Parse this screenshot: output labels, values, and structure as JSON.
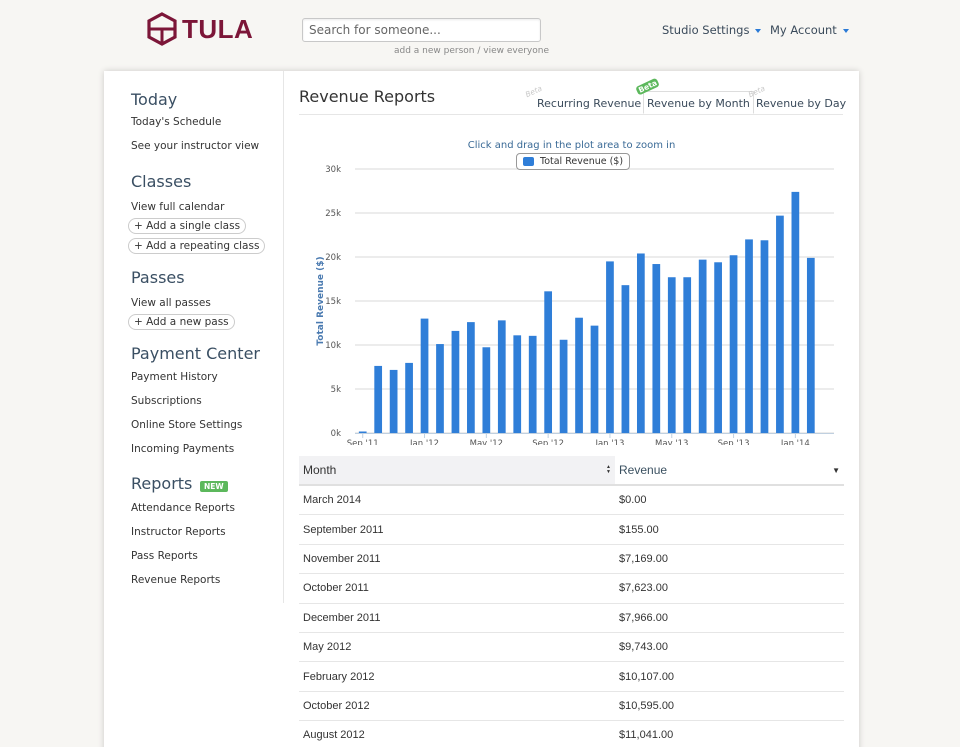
{
  "header": {
    "brand": "TULA",
    "search_placeholder": "Search for someone...",
    "search_subtext": "add a new person / view everyone",
    "menus": [
      {
        "label": "Studio Settings"
      },
      {
        "label": "My Account"
      }
    ]
  },
  "sidebar": {
    "sections": [
      {
        "heading": "Today",
        "items": [
          {
            "label": "Today's Schedule",
            "type": "link"
          },
          {
            "label": "See your instructor view",
            "type": "link"
          }
        ]
      },
      {
        "heading": "Classes",
        "items": [
          {
            "label": "View full calendar",
            "type": "link"
          },
          {
            "label": "+ Add a single class",
            "type": "pill"
          },
          {
            "label": "+ Add a repeating class",
            "type": "pill"
          }
        ]
      },
      {
        "heading": "Passes",
        "items": [
          {
            "label": "View all passes",
            "type": "link"
          },
          {
            "label": "+ Add a new pass",
            "type": "pill"
          }
        ]
      },
      {
        "heading": "Payment Center",
        "items": [
          {
            "label": "Payment History",
            "type": "link"
          },
          {
            "label": "Subscriptions",
            "type": "link"
          },
          {
            "label": "Online Store Settings",
            "type": "link"
          },
          {
            "label": "Incoming Payments",
            "type": "link"
          }
        ]
      },
      {
        "heading": "Reports",
        "badge": "NEW",
        "items": [
          {
            "label": "Attendance Reports",
            "type": "link"
          },
          {
            "label": "Instructor Reports",
            "type": "link"
          },
          {
            "label": "Pass Reports",
            "type": "link"
          },
          {
            "label": "Revenue Reports",
            "type": "link"
          }
        ]
      }
    ]
  },
  "main": {
    "title": "Revenue Reports",
    "tabs": [
      {
        "label": "Recurring Revenue",
        "beta": "Beta",
        "active": false
      },
      {
        "label": "Revenue by Month",
        "beta": "Beta",
        "active": true
      },
      {
        "label": "Revenue by Day",
        "beta": "Beta",
        "active": false
      }
    ],
    "chart_hint": "Click and drag in the plot area to zoom in"
  },
  "colors": {
    "brand": "#7c1638",
    "bar": "#2f7ed8",
    "badge_green": "#5cb85c",
    "heading": "#3a4f63"
  },
  "chart_data": {
    "type": "bar",
    "title": "",
    "legend": [
      "Total Revenue ($)"
    ],
    "legend_placement": "top-center",
    "xlabel": "",
    "ylabel": "Total Revenue ($)",
    "ylim": [
      0,
      30000
    ],
    "yticks": [
      {
        "value": 0,
        "label": "0k"
      },
      {
        "value": 5000,
        "label": "5k"
      },
      {
        "value": 10000,
        "label": "10k"
      },
      {
        "value": 15000,
        "label": "15k"
      },
      {
        "value": 20000,
        "label": "20k"
      },
      {
        "value": 25000,
        "label": "25k"
      },
      {
        "value": 30000,
        "label": "30k"
      }
    ],
    "xticks": [
      {
        "index": 0,
        "label": "Sep '11"
      },
      {
        "index": 4,
        "label": "Jan '12"
      },
      {
        "index": 8,
        "label": "May '12"
      },
      {
        "index": 12,
        "label": "Sep '12"
      },
      {
        "index": 16,
        "label": "Jan '13"
      },
      {
        "index": 20,
        "label": "May '13"
      },
      {
        "index": 24,
        "label": "Sep '13"
      },
      {
        "index": 28,
        "label": "Jan '14"
      }
    ],
    "grid": true,
    "series": [
      {
        "name": "Total Revenue ($)",
        "categories": [
          "Sep 2011",
          "Oct 2011",
          "Nov 2011",
          "Dec 2011",
          "Jan 2012",
          "Feb 2012",
          "Mar 2012",
          "Apr 2012",
          "May 2012",
          "Jun 2012",
          "Jul 2012",
          "Aug 2012",
          "Sep 2012",
          "Oct 2012",
          "Nov 2012",
          "Dec 2012",
          "Jan 2013",
          "Feb 2013",
          "Mar 2013",
          "Apr 2013",
          "May 2013",
          "Jun 2013",
          "Jul 2013",
          "Aug 2013",
          "Sep 2013",
          "Oct 2013",
          "Nov 2013",
          "Dec 2013",
          "Jan 2014",
          "Feb 2014",
          "Mar 2014"
        ],
        "values": [
          155,
          7623,
          7169,
          7966,
          13000,
          10107,
          11600,
          12600,
          9743,
          12800,
          11100,
          11041,
          16100,
          10595,
          13100,
          12200,
          19500,
          16800,
          20400,
          19200,
          17700,
          17700,
          19700,
          19400,
          20200,
          22000,
          21900,
          24700,
          27400,
          19900,
          0
        ]
      }
    ]
  },
  "table": {
    "columns": [
      "Month",
      "Revenue"
    ],
    "rows": [
      {
        "month": "March 2014",
        "revenue": "$0.00"
      },
      {
        "month": "September 2011",
        "revenue": "$155.00"
      },
      {
        "month": "November 2011",
        "revenue": "$7,169.00"
      },
      {
        "month": "October 2011",
        "revenue": "$7,623.00"
      },
      {
        "month": "December 2011",
        "revenue": "$7,966.00"
      },
      {
        "month": "May 2012",
        "revenue": "$9,743.00"
      },
      {
        "month": "February 2012",
        "revenue": "$10,107.00"
      },
      {
        "month": "October 2012",
        "revenue": "$10,595.00"
      },
      {
        "month": "August 2012",
        "revenue": "$11,041.00"
      }
    ]
  }
}
